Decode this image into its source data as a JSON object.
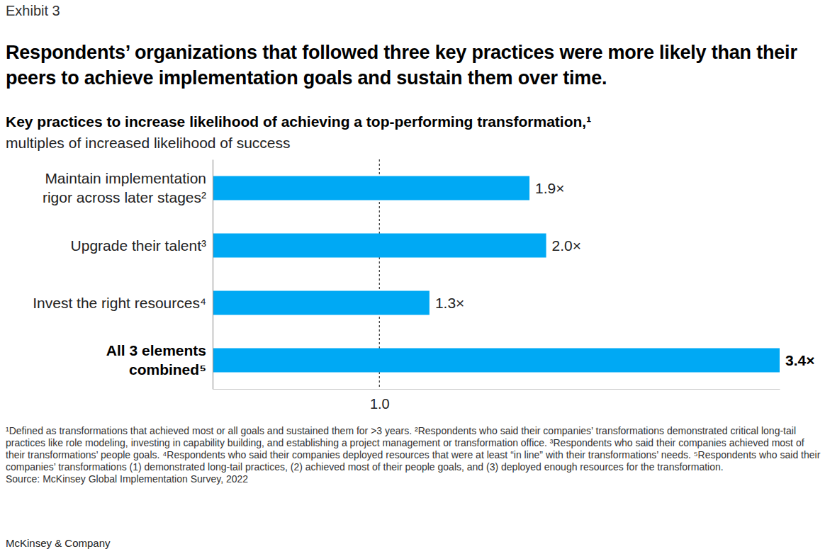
{
  "chart_data": {
    "type": "bar",
    "orientation": "horizontal",
    "exhibit": "Exhibit 3",
    "title": "Respondents’ organizations that followed three key practices were more likely than their peers to achieve implementation goals and sustain them over time.",
    "subtitle": "Key practices to increase likelihood of achieving a top-performing transformation,¹",
    "xlabel": "multiples of increased likelihood of success",
    "categories": [
      "Maintain implementation\nrigor across later stages²",
      "Upgrade their talent³",
      "Invest the right resources⁴",
      "All 3 elements\ncombined⁵"
    ],
    "values": [
      1.9,
      2.0,
      1.3,
      3.4
    ],
    "value_labels": [
      "1.9×",
      "2.0×",
      "1.3×",
      "3.4×"
    ],
    "data_labels": true,
    "color": "#00a9f4",
    "xlim": [
      0,
      3.4
    ],
    "xticks": [
      {
        "value": 1,
        "label": "1.0"
      }
    ],
    "grid": true,
    "notes": [
      "¹Defined as transformations that achieved most or all goals and sustained them for >3 years.",
      "²Respondents who said their companies’ transformations demonstrated critical long-tail practices like role modeling, investing in capability building, and establishing a project management or transformation office.",
      "³Respondents who said their companies achieved most of their transformations’ people goals.",
      "⁴Respondents who said their companies deployed resources that were at least “in line” with their transformations’ needs.",
      "⁵Respondents who said their companies’ transformations (1) demonstrated long-tail practices, (2) achieved most of their people goals, and (3) deployed enough resources for the transformation."
    ],
    "source": "Source: McKinsey Global Implementation Survey, 2022",
    "publisher": "McKinsey & Company"
  }
}
